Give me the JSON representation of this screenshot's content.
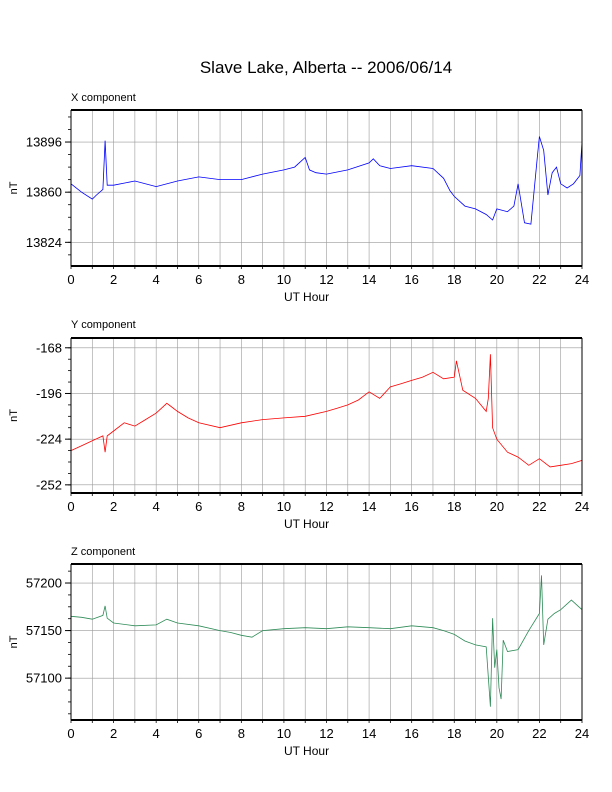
{
  "title": "Slave Lake, Alberta -- 2006/06/14",
  "chart_data": [
    {
      "type": "line",
      "title": "X component",
      "xlabel": "UT Hour",
      "ylabel": "nT",
      "color": "#0000ff",
      "xlim": [
        0,
        24
      ],
      "ylim": [
        13807,
        13919
      ],
      "xticks": [
        0,
        2,
        4,
        6,
        8,
        10,
        12,
        14,
        16,
        18,
        20,
        22,
        24
      ],
      "yticks": [
        13824,
        13860,
        13896
      ],
      "grid": true,
      "series": [
        {
          "x": [
            0,
            0.5,
            1.0,
            1.2,
            1.5,
            1.6,
            1.7,
            2.0,
            3.0,
            4.0,
            5.0,
            6.0,
            7.0,
            8.0,
            9.0,
            10.0,
            10.5,
            11.0,
            11.2,
            11.5,
            12.0,
            13.0,
            14.0,
            14.2,
            14.5,
            15.0,
            16.0,
            17.0,
            17.5,
            17.8,
            18.0,
            18.5,
            19.0,
            19.5,
            19.8,
            20.0,
            20.5,
            20.8,
            21.0,
            21.3,
            21.6,
            21.9,
            22.0,
            22.2,
            22.4,
            22.6,
            22.8,
            23.0,
            23.3,
            23.6,
            23.9,
            24.0
          ],
          "y": [
            13866,
            13860,
            13855,
            13858,
            13862,
            13897,
            13865,
            13865,
            13868,
            13864,
            13868,
            13871,
            13869,
            13869,
            13873,
            13876,
            13878,
            13885,
            13876,
            13874,
            13873,
            13876,
            13881,
            13884,
            13879,
            13877,
            13879,
            13877,
            13870,
            13861,
            13857,
            13850,
            13848,
            13844,
            13840,
            13848,
            13846,
            13850,
            13866,
            13838,
            13837,
            13885,
            13900,
            13890,
            13858,
            13874,
            13878,
            13866,
            13863,
            13866,
            13872,
            13896
          ]
        }
      ]
    },
    {
      "type": "line",
      "title": "Y component",
      "xlabel": "UT Hour",
      "ylabel": "nT",
      "color": "#ff0000",
      "xlim": [
        0,
        24
      ],
      "ylim": [
        -257,
        -162
      ],
      "xticks": [
        0,
        2,
        4,
        6,
        8,
        10,
        12,
        14,
        16,
        18,
        20,
        22,
        24
      ],
      "yticks": [
        -168,
        -196,
        -224,
        -252
      ],
      "grid": true,
      "series": [
        {
          "x": [
            0,
            0.5,
            1.0,
            1.5,
            1.6,
            1.7,
            2.0,
            2.5,
            3.0,
            3.5,
            4.0,
            4.5,
            4.7,
            5.0,
            5.5,
            6.0,
            7.0,
            8.0,
            9.0,
            10.0,
            11.0,
            12.0,
            12.5,
            13.0,
            13.5,
            14.0,
            14.5,
            15.0,
            15.5,
            16.0,
            16.5,
            17.0,
            17.5,
            18.0,
            18.1,
            18.4,
            19.0,
            19.5,
            19.6,
            19.7,
            19.8,
            20.0,
            20.5,
            21.0,
            21.5,
            22.0,
            22.5,
            23.0,
            23.5,
            24.0
          ],
          "y": [
            -231,
            -228,
            -225,
            -222,
            -232,
            -222,
            -219,
            -214,
            -216,
            -212,
            -208,
            -202,
            -204,
            -207,
            -211,
            -214,
            -217,
            -214,
            -212,
            -211,
            -210,
            -207,
            -205,
            -203,
            -200,
            -195,
            -199,
            -192,
            -190,
            -188,
            -186,
            -183,
            -187,
            -186,
            -176,
            -194,
            -199,
            -207,
            -199,
            -172,
            -217,
            -224,
            -232,
            -235,
            -240,
            -236,
            -241,
            -240,
            -239,
            -237
          ]
        }
      ]
    },
    {
      "type": "line",
      "title": "Z component",
      "xlabel": "UT Hour",
      "ylabel": "nT",
      "color": "#2e8b57",
      "xlim": [
        0,
        24
      ],
      "ylim": [
        57056,
        57220
      ],
      "xticks": [
        0,
        2,
        4,
        6,
        8,
        10,
        12,
        14,
        16,
        18,
        20,
        22,
        24
      ],
      "yticks": [
        57100,
        57150,
        57200
      ],
      "grid": true,
      "series": [
        {
          "x": [
            0,
            0.5,
            1.0,
            1.5,
            1.6,
            1.7,
            2.0,
            3.0,
            4.0,
            4.5,
            5.0,
            6.0,
            7.0,
            7.5,
            8.0,
            8.5,
            9.0,
            10.0,
            11.0,
            12.0,
            13.0,
            14.0,
            15.0,
            16.0,
            17.0,
            17.5,
            18.0,
            18.5,
            19.0,
            19.5,
            19.7,
            19.8,
            19.9,
            20.0,
            20.1,
            20.2,
            20.3,
            20.5,
            21.0,
            21.5,
            22.0,
            22.1,
            22.2,
            22.4,
            22.7,
            23.0,
            23.5,
            24.0
          ],
          "y": [
            57165,
            57164,
            57162,
            57166,
            57176,
            57163,
            57158,
            57155,
            57156,
            57162,
            57158,
            57155,
            57150,
            57148,
            57145,
            57143,
            57150,
            57152,
            57153,
            57152,
            57154,
            57153,
            57152,
            57155,
            57153,
            57150,
            57146,
            57139,
            57135,
            57133,
            57070,
            57163,
            57111,
            57130,
            57090,
            57078,
            57140,
            57128,
            57130,
            57150,
            57168,
            57208,
            57135,
            57162,
            57168,
            57172,
            57182,
            57172
          ]
        }
      ]
    }
  ]
}
